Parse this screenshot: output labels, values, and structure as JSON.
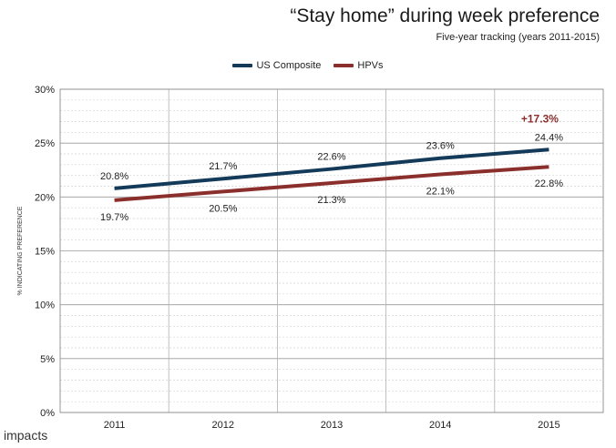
{
  "chart_data": {
    "type": "line",
    "title": "“Stay home” during week preference",
    "subtitle": "Five-year tracking (years 2011-2015)",
    "ylabel": "% INDICATING PREFERENCE",
    "xlabel": "",
    "categories": [
      "2011",
      "2012",
      "2013",
      "2014",
      "2015"
    ],
    "ylim": [
      0,
      30
    ],
    "yticks": [
      0,
      5,
      10,
      15,
      20,
      25,
      30
    ],
    "ytick_labels": [
      "0%",
      "5%",
      "10%",
      "15%",
      "20%",
      "25%",
      "30%"
    ],
    "grid": true,
    "legend_position": "top-center",
    "series": [
      {
        "name": "US Composite",
        "color": "#143A5A",
        "values": [
          20.8,
          21.7,
          22.6,
          23.6,
          24.4
        ],
        "labels": [
          "20.8%",
          "21.7%",
          "22.6%",
          "23.6%",
          "24.4%"
        ],
        "label_side": "above"
      },
      {
        "name": "HPVs",
        "color": "#8B2F2C",
        "values": [
          19.7,
          20.5,
          21.3,
          22.1,
          22.8
        ],
        "labels": [
          "19.7%",
          "20.5%",
          "21.3%",
          "22.1%",
          "22.8%"
        ],
        "label_side": "below"
      }
    ],
    "annotation": {
      "text": "+17.3%",
      "color": "#8B2F2C",
      "category": "2015"
    }
  },
  "logo_text": "impacts"
}
